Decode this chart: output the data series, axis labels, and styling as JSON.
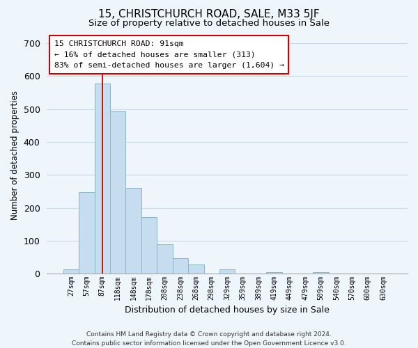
{
  "title_line1": "15, CHRISTCHURCH ROAD, SALE, M33 5JF",
  "title_line2": "Size of property relative to detached houses in Sale",
  "xlabel": "Distribution of detached houses by size in Sale",
  "ylabel": "Number of detached properties",
  "bar_color": "#c5ddef",
  "bar_edge_color": "#8ab4cc",
  "categories": [
    "27sqm",
    "57sqm",
    "87sqm",
    "118sqm",
    "148sqm",
    "178sqm",
    "208sqm",
    "238sqm",
    "268sqm",
    "298sqm",
    "329sqm",
    "359sqm",
    "389sqm",
    "419sqm",
    "449sqm",
    "479sqm",
    "509sqm",
    "540sqm",
    "570sqm",
    "600sqm",
    "630sqm"
  ],
  "values": [
    12,
    247,
    578,
    492,
    261,
    171,
    89,
    47,
    27,
    0,
    13,
    0,
    0,
    5,
    0,
    0,
    5,
    0,
    0,
    0,
    0
  ],
  "ylim": [
    0,
    720
  ],
  "yticks": [
    0,
    100,
    200,
    300,
    400,
    500,
    600,
    700
  ],
  "property_line_x": 2,
  "annotation_text_line1": "15 CHRISTCHURCH ROAD: 91sqm",
  "annotation_text_line2": "← 16% of detached houses are smaller (313)",
  "annotation_text_line3": "83% of semi-detached houses are larger (1,604) →",
  "footer_text": "Contains HM Land Registry data © Crown copyright and database right 2024.\nContains public sector information licensed under the Open Government Licence v3.0.",
  "grid_color": "#c8dce8",
  "background_color": "#eef5fb"
}
